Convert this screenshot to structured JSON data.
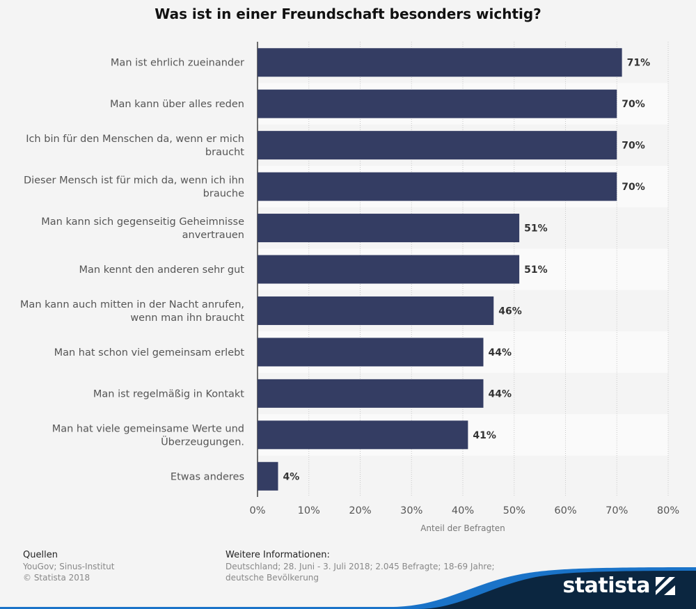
{
  "title": "Was ist in einer Freundschaft besonders wichtig?",
  "chart_data": {
    "type": "bar",
    "orientation": "horizontal",
    "categories": [
      "Man ist ehrlich zueinander",
      "Man kann über alles reden",
      "Ich bin für den Menschen da, wenn er mich braucht",
      "Dieser Mensch ist für mich da, wenn ich ihn brauche",
      "Man kann sich gegenseitig Geheimnisse anvertrauen",
      "Man kennt den anderen sehr gut",
      "Man kann auch mitten in der Nacht anrufen, wenn man ihn braucht",
      "Man hat schon viel gemeinsam erlebt",
      "Man ist regelmäßig in Kontakt",
      "Man hat viele gemeinsame Werte und Überzeugungen.",
      "Etwas anderes"
    ],
    "category_lines": [
      [
        "Man ist ehrlich zueinander"
      ],
      [
        "Man kann über alles reden"
      ],
      [
        "Ich bin für den Menschen da, wenn er mich",
        "braucht"
      ],
      [
        "Dieser Mensch ist für mich da, wenn ich ihn",
        "brauche"
      ],
      [
        "Man kann sich gegenseitig Geheimnisse",
        "anvertrauen"
      ],
      [
        "Man kennt den anderen sehr gut"
      ],
      [
        "Man kann auch mitten in der Nacht anrufen,",
        "wenn man ihn braucht"
      ],
      [
        "Man hat schon viel gemeinsam erlebt"
      ],
      [
        "Man ist regelmäßig in Kontakt"
      ],
      [
        "Man hat viele gemeinsame Werte und",
        "Überzeugungen."
      ],
      [
        "Etwas anderes"
      ]
    ],
    "values": [
      71,
      70,
      70,
      70,
      51,
      51,
      46,
      44,
      44,
      41,
      4
    ],
    "value_labels": [
      "71%",
      "70%",
      "70%",
      "70%",
      "51%",
      "51%",
      "46%",
      "44%",
      "44%",
      "41%",
      "4%"
    ],
    "xlim": [
      0,
      80
    ],
    "x_ticks": [
      0,
      10,
      20,
      30,
      40,
      50,
      60,
      70,
      80
    ],
    "x_tick_labels": [
      "0%",
      "10%",
      "20%",
      "30%",
      "40%",
      "50%",
      "60%",
      "70%",
      "80%"
    ],
    "xlabel": "Anteil der Befragten",
    "grid": true,
    "bar_color": "#343d63"
  },
  "footer": {
    "sources_heading": "Quellen",
    "sources_lines": [
      "YouGov; Sinus-Institut",
      "© Statista 2018"
    ],
    "info_heading": "Weitere Informationen:",
    "info_lines": [
      "Deutschland; 28. Juni - 3. Juli 2018; 2.045 Befragte; 18-69 Jahre;",
      "deutsche Bevölkerung"
    ]
  },
  "brand": {
    "name": "statista",
    "color": "#0b2640",
    "accent": "#1a73c8"
  }
}
